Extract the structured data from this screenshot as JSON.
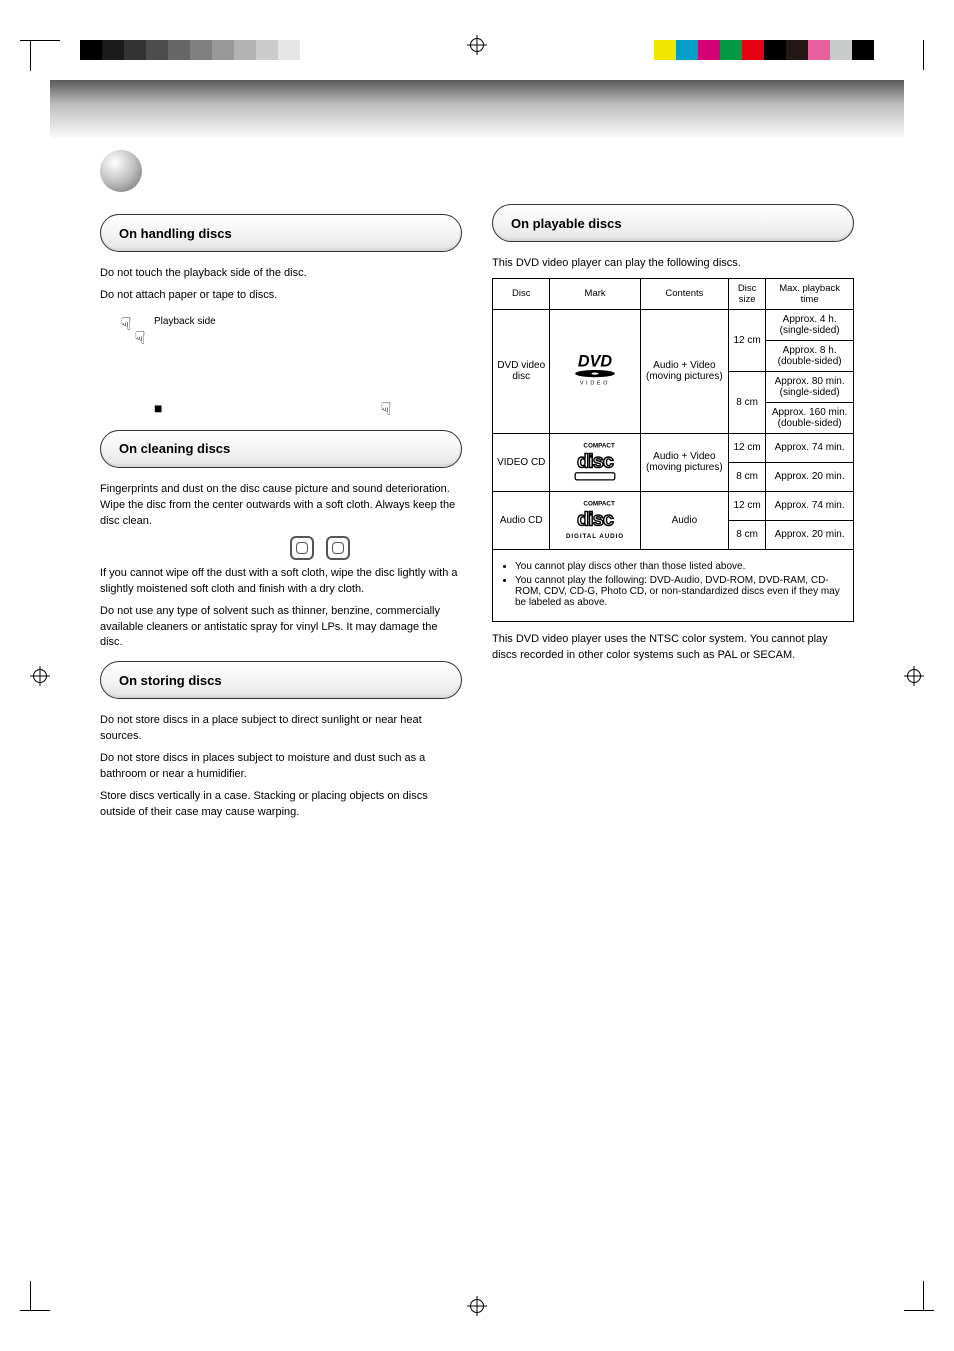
{
  "print_bars": {
    "gray": [
      "#000000",
      "#1a1a1a",
      "#333333",
      "#4d4d4d",
      "#666666",
      "#808080",
      "#999999",
      "#b3b3b3",
      "#cccccc",
      "#e6e6e6",
      "#ffffff"
    ],
    "color": [
      "#f2e600",
      "#00a0c8",
      "#d40073",
      "#009944",
      "#e60012",
      "#000000",
      "#231815",
      "#ea609e",
      "#c9caca",
      "#000000"
    ]
  },
  "heading": {
    "title_prefix": "",
    "title": ""
  },
  "left": {
    "sec1": {
      "label": "On handling discs",
      "p1": "Do not touch the playback side of the disc.",
      "p2": "Do not attach paper or tape to discs.",
      "fig_caption_left": "Playback side",
      "sq_note": "",
      "hand_note": ""
    },
    "sec2": {
      "label": "On cleaning discs",
      "p1": "Fingerprints and dust on the disc cause picture and sound deterioration. Wipe the disc from the center outwards with a soft cloth. Always keep the disc clean.",
      "p2": "If you cannot wipe off the dust with a soft cloth, wipe the disc lightly with a slightly moistened soft cloth and finish with a dry cloth.",
      "p3": "Do not use any type of solvent such as thinner, benzine, commercially available cleaners or antistatic spray for vinyl LPs. It may damage the disc."
    },
    "sec3": {
      "label": "On storing discs",
      "p1": "Do not store discs in a place subject to direct sunlight or near heat sources.",
      "p2": "Do not store discs in places subject to moisture and dust such as a bathroom or near a humidifier.",
      "p3": "Store discs vertically in a case. Stacking or placing objects on discs outside of their case may cause warping."
    }
  },
  "right": {
    "sec": {
      "label": "On playable discs"
    },
    "intro": "This DVD video player can play the following discs.",
    "table": {
      "headers": [
        "Disc",
        "Mark",
        "Contents",
        "Disc size",
        "Max. playback time"
      ],
      "rows": [
        {
          "disc": "DVD video disc",
          "mark": "dvd",
          "contents": "Audio + Video (moving pictures)",
          "cells": [
            {
              "size": "12 cm",
              "time_a": "Approx. 4 h. (single-sided)",
              "time_b": "Approx. 8 h. (double-sided)"
            },
            {
              "size": "8 cm",
              "time_a": "Approx. 80 min. (single-sided)",
              "time_b": "Approx. 160 min. (double-sided)"
            }
          ]
        },
        {
          "disc": "VIDEO CD",
          "mark": "vcd",
          "contents": "Audio + Video (moving pictures)",
          "cells": [
            {
              "size": "12 cm",
              "time_a": "Approx. 74 min."
            },
            {
              "size": "8 cm",
              "time_a": "Approx. 20 min."
            }
          ]
        },
        {
          "disc": "Audio CD",
          "mark": "cd",
          "contents": "Audio",
          "cells": [
            {
              "size": "12 cm",
              "time_a": "Approx. 74 min."
            },
            {
              "size": "8 cm",
              "time_a": "Approx. 20 min."
            }
          ]
        }
      ],
      "notes": [
        "You cannot play discs other than those listed above.",
        "You cannot play the following: DVD-Audio, DVD-ROM, DVD-RAM, CD-ROM, CDV, CD-G, Photo CD, or non-standardized discs even if they may be labeled as above."
      ]
    },
    "para": "This DVD video player uses the NTSC color system. You cannot play discs recorded in other color systems such as PAL or SECAM."
  },
  "footer": {
    "page": "",
    "file": ""
  },
  "colors": {
    "border": "#000000",
    "pill_border": "#333333",
    "pill_grad_top": "#ffffff",
    "pill_grad_bot": "#e4e4e4",
    "gradband_top": "#5a5a5a",
    "gradband_bot": "#ffffff"
  }
}
